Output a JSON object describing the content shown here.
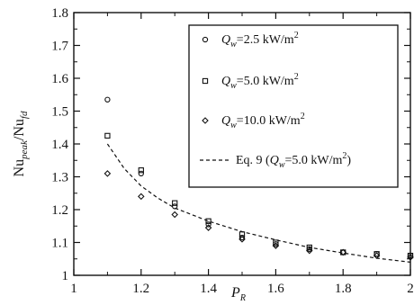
{
  "chart_data": {
    "type": "scatter",
    "xlim": [
      1,
      2
    ],
    "ylim": [
      1,
      1.8
    ],
    "x_ticks": [
      1,
      1.2,
      1.4,
      1.6,
      1.8,
      2
    ],
    "y_ticks": [
      1,
      1.1,
      1.2,
      1.3,
      1.4,
      1.5,
      1.6,
      1.7,
      1.8
    ],
    "x_tick_labels": [
      "1",
      "1.2",
      "1.4",
      "1.6",
      "1.8",
      "2"
    ],
    "y_tick_labels": [
      "1",
      "1.1",
      "1.2",
      "1.3",
      "1.4",
      "1.5",
      "1.6",
      "1.7",
      "1.8"
    ],
    "xlabel": {
      "main": "P",
      "sub": "R"
    },
    "ylabel": {
      "num_main": "Nu",
      "num_sub": "peak",
      "sep": "/",
      "den_main": "Nu",
      "den_sub": "fd"
    },
    "grid": false,
    "legend_position": "top-right",
    "series": [
      {
        "marker": "circle",
        "legend": {
          "sym": "Q",
          "sub": "w",
          "val": "=2.5 kW/m",
          "sup": "2"
        },
        "x": [
          1.1,
          1.2,
          1.3,
          1.4,
          1.5,
          1.6,
          1.7,
          1.8,
          1.9,
          2.0
        ],
        "y": [
          1.535,
          1.31,
          1.21,
          1.155,
          1.115,
          1.095,
          1.08,
          1.07,
          1.065,
          1.06
        ]
      },
      {
        "marker": "square",
        "legend": {
          "sym": "Q",
          "sub": "w",
          "val": "=5.0 kW/m",
          "sup": "2"
        },
        "x": [
          1.1,
          1.2,
          1.3,
          1.4,
          1.5,
          1.6,
          1.7,
          1.8,
          1.9,
          2.0
        ],
        "y": [
          1.425,
          1.32,
          1.22,
          1.165,
          1.125,
          1.1,
          1.085,
          1.07,
          1.065,
          1.06
        ]
      },
      {
        "marker": "diamond",
        "legend": {
          "sym": "Q",
          "sub": "w",
          "val": "=10.0 kW/m",
          "sup": "2"
        },
        "x": [
          1.1,
          1.2,
          1.3,
          1.4,
          1.5,
          1.6,
          1.7,
          1.8,
          1.9,
          2.0
        ],
        "y": [
          1.31,
          1.24,
          1.185,
          1.145,
          1.11,
          1.09,
          1.075,
          1.07,
          1.06,
          1.055
        ]
      },
      {
        "marker": "dashed-line",
        "legend": {
          "pre": "Eq. 9 (",
          "sym": "Q",
          "sub": "w",
          "val": "=5.0 kW/m",
          "sup": "2",
          "post": ")"
        },
        "x": [
          1.1,
          1.15,
          1.2,
          1.25,
          1.3,
          1.4,
          1.5,
          1.6,
          1.7,
          1.8,
          1.9,
          2.0
        ],
        "y": [
          1.4,
          1.325,
          1.272,
          1.235,
          1.205,
          1.165,
          1.133,
          1.108,
          1.085,
          1.068,
          1.052,
          1.04
        ]
      }
    ]
  }
}
